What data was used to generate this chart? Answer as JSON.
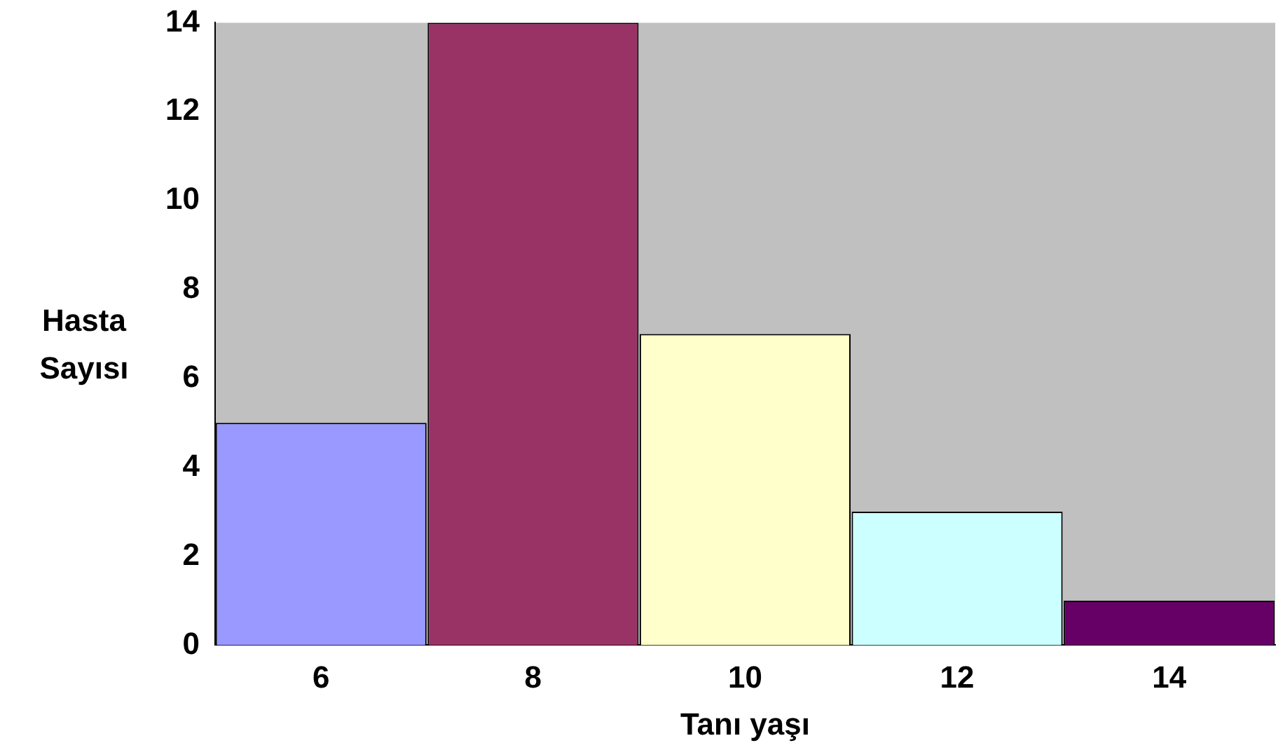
{
  "chart_data": {
    "type": "bar",
    "xlabel": "Tanı yaşı",
    "ylabel": "Hasta Sayısı",
    "categories": [
      "6",
      "8",
      "10",
      "12",
      "14"
    ],
    "values": [
      5,
      14,
      7,
      3,
      1
    ],
    "colors": [
      "#9999ff",
      "#993366",
      "#ffffcc",
      "#ccffff",
      "#660066"
    ],
    "ylim": [
      0,
      14
    ],
    "yticks": [
      0,
      2,
      4,
      6,
      8,
      10,
      12,
      14
    ],
    "grid": false,
    "legend": false
  }
}
